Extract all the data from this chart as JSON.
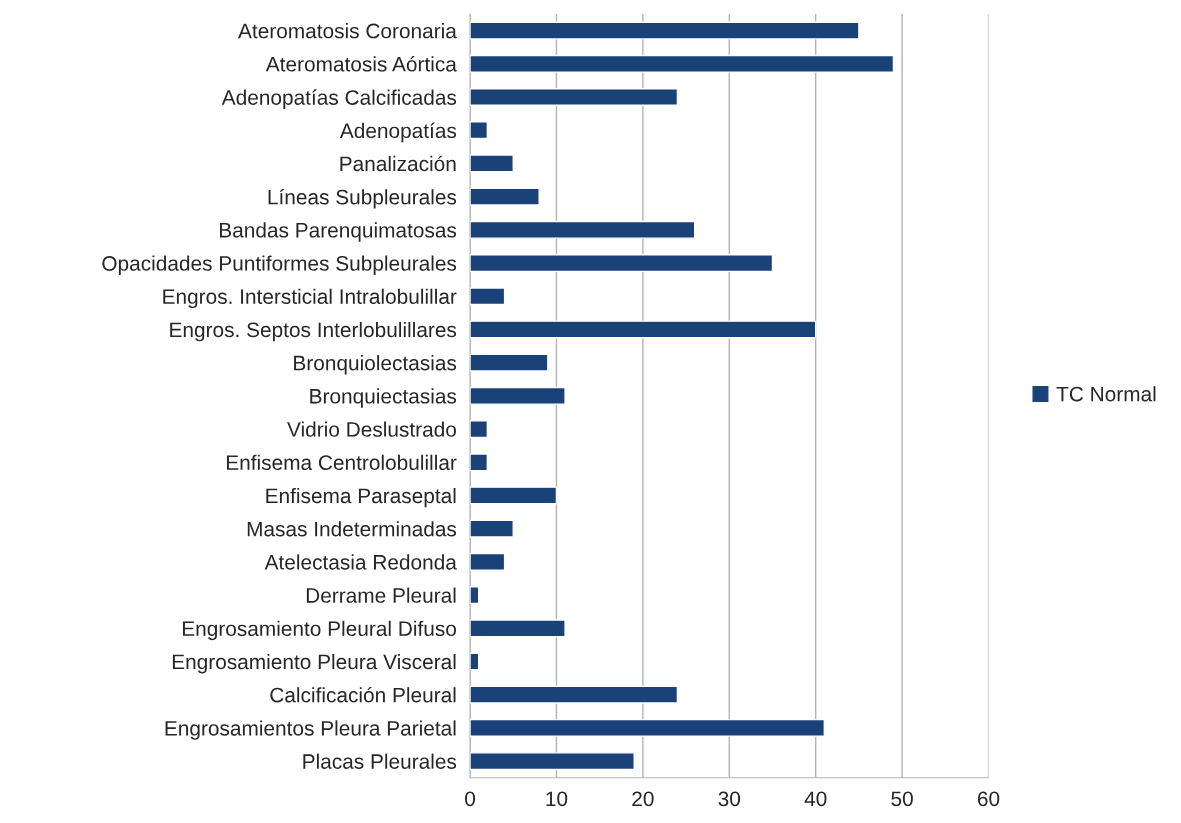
{
  "chart_data": {
    "type": "bar",
    "orientation": "horizontal",
    "categories": [
      "Ateromatosis Coronaria",
      "Ateromatosis Aórtica",
      "Adenopatías Calcificadas",
      "Adenopatías",
      "Panalización",
      "Líneas Subpleurales",
      "Bandas Parenquimatosas",
      "Opacidades Puntiformes Subpleurales",
      "Engros. Intersticial Intralobulillar",
      "Engros. Septos Interlobulillares",
      "Bronquiolectasias",
      "Bronquiectasias",
      "Vidrio Deslustrado",
      "Enfisema Centrolobulillar",
      "Enfisema Paraseptal",
      "Masas Indeterminadas",
      "Atelectasia Redonda",
      "Derrame Pleural",
      "Engrosamiento Pleural Difuso",
      "Engrosamiento Pleura Visceral",
      "Calcificación Pleural",
      "Engrosamientos Pleura Parietal",
      "Placas Pleurales"
    ],
    "series": [
      {
        "name": "TC Normal",
        "color": "#1b4278",
        "values": [
          45,
          49,
          24,
          2,
          5,
          8,
          26,
          35,
          4,
          40,
          9,
          11,
          2,
          2,
          10,
          5,
          4,
          1,
          11,
          1,
          24,
          41,
          19
        ]
      }
    ],
    "xlim": [
      0,
      60
    ],
    "xticks": [
      0,
      10,
      20,
      30,
      40,
      50,
      60
    ],
    "grid": "x",
    "legend": "right"
  }
}
